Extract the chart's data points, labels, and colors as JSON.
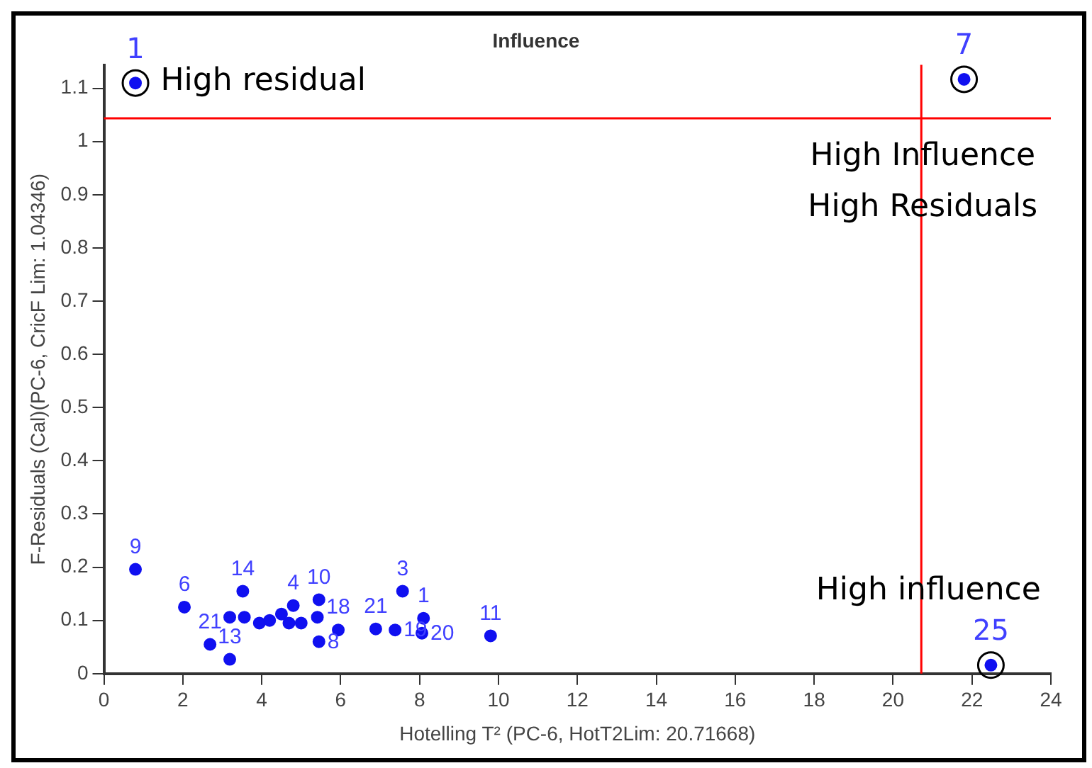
{
  "chart_data": {
    "type": "scatter",
    "title": "Influence",
    "xlabel": "Hotelling T² (PC-6, HotT2Lim: 20.71668)",
    "ylabel": "F-Residuals (Cal)(PC-6, CricF Lim: 1.04346)",
    "xlim": [
      0,
      24
    ],
    "xticks": [
      0,
      2,
      4,
      6,
      8,
      10,
      12,
      14,
      16,
      18,
      20,
      22,
      24
    ],
    "ylim": [
      0,
      1.144
    ],
    "yticks": [
      0,
      0.1,
      0.2,
      0.3,
      0.4,
      0.5,
      0.6,
      0.7,
      0.8,
      0.9,
      1,
      1.1
    ],
    "grid": false,
    "legend": false,
    "marker": "circle",
    "series": [
      {
        "color": "#1010f0",
        "x": [
          0.8,
          21.8,
          22.48,
          0.8,
          2.04,
          2.69,
          3.19,
          3.19,
          3.56,
          3.52,
          3.94,
          4.2,
          4.5,
          4.69,
          4.8,
          5.0,
          5.41,
          5.45,
          5.45,
          5.94,
          6.89,
          7.38,
          7.57,
          8.06,
          8.1,
          9.8
        ],
        "values": [
          1.11,
          1.117,
          0.016,
          0.196,
          0.125,
          0.055,
          0.027,
          0.106,
          0.106,
          0.155,
          0.095,
          0.1,
          0.112,
          0.095,
          0.128,
          0.095,
          0.106,
          0.139,
          0.06,
          0.082,
          0.084,
          0.082,
          0.155,
          0.076,
          0.104,
          0.071
        ]
      }
    ],
    "ref_lines": [
      {
        "axis": "y",
        "value": 1.04346,
        "color": "#ff0000"
      },
      {
        "axis": "x",
        "value": 20.71668,
        "color": "#ff0000"
      }
    ],
    "annotations": [
      "High residual",
      "High Influence",
      "High Residuals",
      "High influence",
      {
        "text": "1",
        "x": 0.8,
        "y": 1.11
      },
      {
        "text": "7",
        "x": 21.8,
        "y": 1.117
      },
      {
        "text": "25",
        "x": 22.48,
        "y": 0.016
      },
      {
        "text": "9",
        "x": 0.8,
        "y": 0.196
      },
      {
        "text": "6",
        "x": 2.04,
        "y": 0.125
      },
      {
        "text": "21",
        "x": 2.69,
        "y": 0.055
      },
      {
        "text": "13",
        "x": 3.19,
        "y": 0.027
      },
      {
        "text": "14",
        "x": 3.52,
        "y": 0.155
      },
      {
        "text": "4",
        "x": 4.8,
        "y": 0.128
      },
      {
        "text": "10",
        "x": 5.45,
        "y": 0.139
      },
      {
        "text": "8",
        "x": 5.45,
        "y": 0.06
      },
      {
        "text": "18",
        "x": 5.94,
        "y": 0.082
      },
      {
        "text": "21",
        "x": 6.89,
        "y": 0.084
      },
      {
        "text": "19",
        "x": 7.38,
        "y": 0.082
      },
      {
        "text": "3",
        "x": 7.57,
        "y": 0.155
      },
      {
        "text": "20",
        "x": 8.06,
        "y": 0.076
      },
      {
        "text": "1",
        "x": 8.1,
        "y": 0.104
      },
      {
        "text": "11",
        "x": 9.8,
        "y": 0.071
      }
    ]
  }
}
